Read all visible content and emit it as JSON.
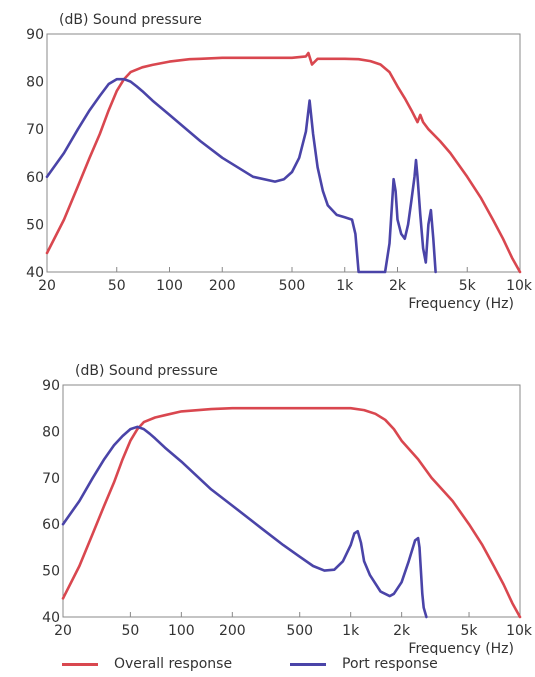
{
  "colors": {
    "overall": "#d9474f",
    "port": "#4a44a8",
    "frame": "#888888",
    "grid": "#dcdcdc"
  },
  "legend": {
    "overall": "Overall response",
    "port": "Port response"
  },
  "chart_data": [
    {
      "type": "line",
      "title": "",
      "ylabel": "(dB)  Sound pressure",
      "xlabel": "Frequency  (Hz)",
      "x_scale": "log",
      "xlim": [
        20,
        10000
      ],
      "ylim": [
        40,
        90
      ],
      "x_ticks": [
        20,
        50,
        100,
        200,
        500,
        1000,
        2000,
        5000,
        10000
      ],
      "x_tick_labels": [
        "20",
        "50",
        "100",
        "200",
        "500",
        "1k",
        "2k",
        "5k",
        "10k"
      ],
      "y_ticks": [
        40,
        50,
        60,
        70,
        80,
        90
      ],
      "y_tick_labels": [
        "40",
        "50",
        "60",
        "70",
        "80",
        "90"
      ],
      "grid": false,
      "series": [
        {
          "name": "Overall response",
          "key": "overall",
          "x": [
            20,
            25,
            30,
            35,
            40,
            45,
            50,
            55,
            60,
            70,
            80,
            100,
            130,
            150,
            200,
            300,
            400,
            500,
            600,
            620,
            650,
            700,
            800,
            1000,
            1200,
            1400,
            1600,
            1800,
            2000,
            2200,
            2400,
            2600,
            2700,
            2800,
            3000,
            3500,
            4000,
            5000,
            6000,
            7000,
            8000,
            9000,
            10000
          ],
          "y": [
            44,
            51,
            58,
            64,
            69,
            74,
            78,
            80.5,
            82,
            83,
            83.5,
            84.2,
            84.7,
            84.8,
            85,
            85,
            85,
            85,
            85.3,
            86,
            83.6,
            84.8,
            84.8,
            84.8,
            84.7,
            84.3,
            83.6,
            82,
            79,
            76.5,
            74,
            71.5,
            73,
            71.5,
            70,
            67.5,
            65,
            60,
            55.5,
            51,
            47,
            43,
            40
          ]
        },
        {
          "name": "Port response",
          "key": "port",
          "x": [
            20,
            25,
            30,
            35,
            40,
            45,
            50,
            55,
            60,
            65,
            70,
            80,
            100,
            150,
            200,
            300,
            400,
            450,
            500,
            550,
            600,
            630,
            660,
            700,
            750,
            800,
            900,
            1000,
            1100,
            1150,
            1200,
            1300,
            1400,
            1500,
            1600,
            1700,
            1800,
            1900,
            1950,
            2000,
            2100,
            2200,
            2300,
            2400,
            2500,
            2550,
            2600,
            2700,
            2800,
            2900,
            3000,
            3100,
            3200,
            3300
          ],
          "y": [
            60,
            65,
            70,
            74,
            77,
            79.5,
            80.5,
            80.5,
            80,
            79,
            78,
            76,
            73,
            67.5,
            64,
            60,
            59,
            59.5,
            61,
            64,
            69.5,
            76,
            69,
            62,
            57,
            54,
            52,
            51.5,
            51,
            48,
            40,
            40,
            40,
            40,
            40,
            40,
            46,
            59.5,
            57,
            51,
            48,
            47,
            50,
            55,
            60,
            63.5,
            60,
            52,
            45,
            42,
            50,
            53,
            47,
            40
          ]
        }
      ]
    },
    {
      "type": "line",
      "title": "",
      "ylabel": "(dB)  Sound pressure",
      "xlabel": "Frequency  (Hz)",
      "x_scale": "log",
      "xlim": [
        20,
        10000
      ],
      "ylim": [
        40,
        90
      ],
      "x_ticks": [
        20,
        50,
        100,
        200,
        500,
        1000,
        2000,
        5000,
        10000
      ],
      "x_tick_labels": [
        "20",
        "50",
        "100",
        "200",
        "500",
        "1k",
        "2k",
        "5k",
        "10k"
      ],
      "y_ticks": [
        40,
        50,
        60,
        70,
        80,
        90
      ],
      "y_tick_labels": [
        "40",
        "50",
        "60",
        "70",
        "80",
        "90"
      ],
      "grid": false,
      "series": [
        {
          "name": "Overall response",
          "key": "overall",
          "x": [
            20,
            25,
            30,
            35,
            40,
            45,
            50,
            55,
            60,
            70,
            80,
            100,
            150,
            200,
            300,
            500,
            800,
            1000,
            1200,
            1400,
            1600,
            1800,
            2000,
            2500,
            3000,
            4000,
            5000,
            6000,
            7000,
            8000,
            9000,
            10000
          ],
          "y": [
            44,
            51,
            58,
            64,
            69,
            74,
            78,
            80.5,
            82,
            83,
            83.5,
            84.3,
            84.8,
            85,
            85,
            85,
            85,
            85,
            84.6,
            83.8,
            82.5,
            80.5,
            78,
            74,
            70,
            65,
            60,
            55.5,
            51,
            47,
            43,
            40
          ]
        },
        {
          "name": "Port response",
          "key": "port",
          "x": [
            20,
            25,
            30,
            35,
            40,
            45,
            50,
            55,
            60,
            65,
            70,
            80,
            100,
            150,
            200,
            300,
            400,
            500,
            600,
            700,
            800,
            900,
            1000,
            1050,
            1100,
            1150,
            1200,
            1300,
            1500,
            1700,
            1800,
            2000,
            2200,
            2400,
            2500,
            2550,
            2600,
            2650,
            2700,
            2800
          ],
          "y": [
            60,
            65,
            70,
            74,
            77,
            79,
            80.5,
            81,
            80.5,
            79.5,
            78.5,
            76.5,
            73.5,
            67.5,
            64,
            59,
            55.5,
            53,
            51,
            50,
            50.2,
            52,
            55.5,
            58,
            58.5,
            56,
            52,
            49,
            45.5,
            44.5,
            45,
            47.5,
            52,
            56.5,
            57,
            55,
            50,
            45,
            42,
            40
          ]
        }
      ]
    }
  ]
}
